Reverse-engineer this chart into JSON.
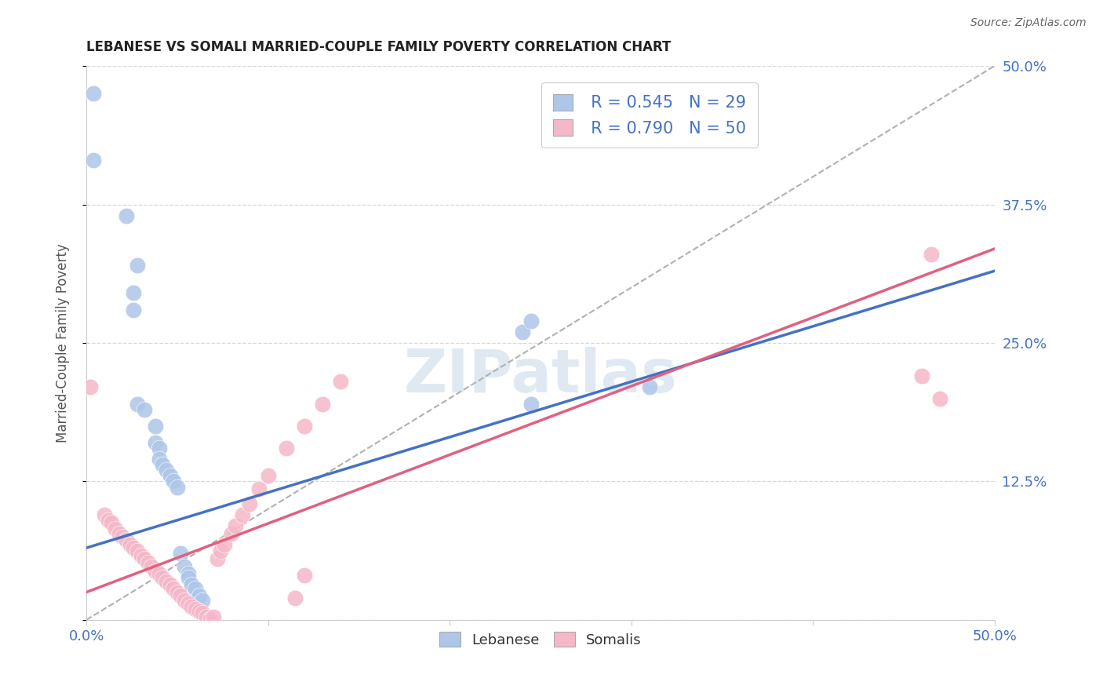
{
  "title": "LEBANESE VS SOMALI MARRIED-COUPLE FAMILY POVERTY CORRELATION CHART",
  "source": "Source: ZipAtlas.com",
  "ylabel": "Married-Couple Family Poverty",
  "xlim": [
    0.0,
    0.5
  ],
  "ylim": [
    0.0,
    0.5
  ],
  "background_color": "#ffffff",
  "grid_color": "#d8d8d8",
  "watermark": "ZIPatlas",
  "legend_R1": "R = 0.545",
  "legend_N1": "N = 29",
  "legend_R2": "R = 0.790",
  "legend_N2": "N = 50",
  "legend_labels": [
    "Lebanese",
    "Somalis"
  ],
  "blue_color": "#aec6e8",
  "pink_color": "#f5b8c8",
  "blue_line_color": "#4472c4",
  "pink_line_color": "#e06080",
  "text_color": "#4472c4",
  "title_color": "#222222",
  "source_color": "#666666",
  "lebanese_points": [
    [
      0.004,
      0.475
    ],
    [
      0.004,
      0.415
    ],
    [
      0.022,
      0.365
    ],
    [
      0.026,
      0.295
    ],
    [
      0.026,
      0.28
    ],
    [
      0.028,
      0.32
    ],
    [
      0.028,
      0.195
    ],
    [
      0.032,
      0.19
    ],
    [
      0.038,
      0.175
    ],
    [
      0.038,
      0.16
    ],
    [
      0.04,
      0.155
    ],
    [
      0.04,
      0.145
    ],
    [
      0.042,
      0.14
    ],
    [
      0.044,
      0.135
    ],
    [
      0.046,
      0.13
    ],
    [
      0.048,
      0.125
    ],
    [
      0.05,
      0.12
    ],
    [
      0.052,
      0.06
    ],
    [
      0.054,
      0.048
    ],
    [
      0.056,
      0.042
    ],
    [
      0.056,
      0.038
    ],
    [
      0.058,
      0.032
    ],
    [
      0.06,
      0.028
    ],
    [
      0.062,
      0.022
    ],
    [
      0.064,
      0.018
    ],
    [
      0.24,
      0.26
    ],
    [
      0.245,
      0.27
    ],
    [
      0.31,
      0.21
    ],
    [
      0.245,
      0.195
    ]
  ],
  "somali_points": [
    [
      0.002,
      0.21
    ],
    [
      0.01,
      0.095
    ],
    [
      0.012,
      0.09
    ],
    [
      0.014,
      0.088
    ],
    [
      0.016,
      0.082
    ],
    [
      0.018,
      0.078
    ],
    [
      0.02,
      0.075
    ],
    [
      0.022,
      0.072
    ],
    [
      0.024,
      0.068
    ],
    [
      0.026,
      0.065
    ],
    [
      0.028,
      0.062
    ],
    [
      0.03,
      0.058
    ],
    [
      0.032,
      0.055
    ],
    [
      0.034,
      0.052
    ],
    [
      0.036,
      0.048
    ],
    [
      0.038,
      0.044
    ],
    [
      0.04,
      0.042
    ],
    [
      0.042,
      0.038
    ],
    [
      0.044,
      0.035
    ],
    [
      0.046,
      0.032
    ],
    [
      0.048,
      0.028
    ],
    [
      0.05,
      0.025
    ],
    [
      0.052,
      0.022
    ],
    [
      0.054,
      0.018
    ],
    [
      0.056,
      0.015
    ],
    [
      0.058,
      0.012
    ],
    [
      0.06,
      0.01
    ],
    [
      0.062,
      0.008
    ],
    [
      0.064,
      0.006
    ],
    [
      0.066,
      0.003
    ],
    [
      0.068,
      0.001
    ],
    [
      0.07,
      0.003
    ],
    [
      0.072,
      0.055
    ],
    [
      0.074,
      0.062
    ],
    [
      0.076,
      0.068
    ],
    [
      0.08,
      0.078
    ],
    [
      0.082,
      0.085
    ],
    [
      0.086,
      0.095
    ],
    [
      0.09,
      0.105
    ],
    [
      0.095,
      0.118
    ],
    [
      0.1,
      0.13
    ],
    [
      0.11,
      0.155
    ],
    [
      0.12,
      0.175
    ],
    [
      0.13,
      0.195
    ],
    [
      0.14,
      0.215
    ],
    [
      0.46,
      0.22
    ],
    [
      0.465,
      0.33
    ],
    [
      0.47,
      0.2
    ],
    [
      0.12,
      0.04
    ],
    [
      0.115,
      0.02
    ]
  ],
  "blue_line": [
    0.0,
    0.065,
    0.5,
    0.315
  ],
  "pink_line": [
    0.0,
    0.025,
    0.5,
    0.335
  ]
}
